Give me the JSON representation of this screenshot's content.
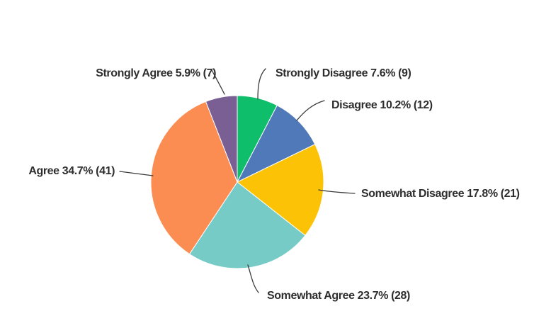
{
  "chart_data": {
    "type": "pie",
    "title": "",
    "direction": "clockwise",
    "start_angle_deg": 0,
    "legend_position": "callout-labels",
    "background_color": "#ffffff",
    "label_text_color": "#2e2e2e",
    "leader_line_color": "#3b3b3b",
    "categories": [
      "Strongly Disagree",
      "Disagree",
      "Somewhat Disagree",
      "Somewhat Agree",
      "Agree",
      "Strongly Agree"
    ],
    "values": [
      9,
      12,
      21,
      28,
      41,
      7
    ],
    "slices": [
      {
        "label": "Strongly Disagree",
        "percent": 7.6,
        "count": 9,
        "color": "#0ebe6a",
        "label_text": "Strongly Disagree 7.6% (9)"
      },
      {
        "label": "Disagree",
        "percent": 10.2,
        "count": 12,
        "color": "#4f79b8",
        "label_text": "Disagree 10.2% (12)"
      },
      {
        "label": "Somewhat Disagree",
        "percent": 17.8,
        "count": 21,
        "color": "#fcc306",
        "label_text": "Somewhat Disagree 17.8% (21)"
      },
      {
        "label": "Somewhat Agree",
        "percent": 23.7,
        "count": 28,
        "color": "#76cbc7",
        "label_text": "Somewhat Agree 23.7% (28)"
      },
      {
        "label": "Agree",
        "percent": 34.7,
        "count": 41,
        "color": "#fc8d52",
        "label_text": "Agree 34.7% (41)"
      },
      {
        "label": "Strongly Agree",
        "percent": 5.9,
        "count": 7,
        "color": "#7a5f95",
        "label_text": "Strongly Agree 5.9% (7)"
      }
    ]
  }
}
